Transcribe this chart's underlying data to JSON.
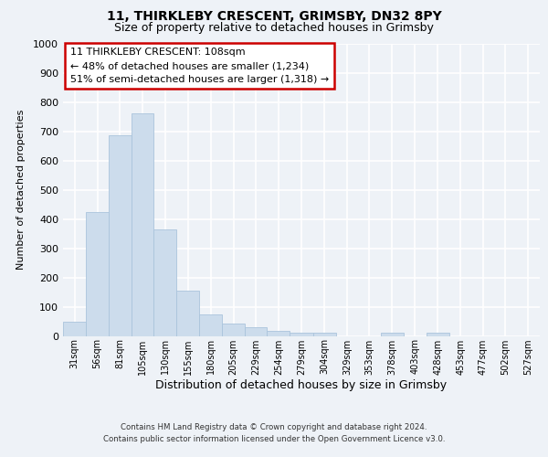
{
  "title_line1": "11, THIRKLEBY CRESCENT, GRIMSBY, DN32 8PY",
  "title_line2": "Size of property relative to detached houses in Grimsby",
  "xlabel": "Distribution of detached houses by size in Grimsby",
  "ylabel": "Number of detached properties",
  "bin_labels": [
    "31sqm",
    "56sqm",
    "81sqm",
    "105sqm",
    "130sqm",
    "155sqm",
    "180sqm",
    "205sqm",
    "229sqm",
    "254sqm",
    "279sqm",
    "304sqm",
    "329sqm",
    "353sqm",
    "378sqm",
    "403sqm",
    "428sqm",
    "453sqm",
    "477sqm",
    "502sqm",
    "527sqm"
  ],
  "bin_edges": [
    18.5,
    43.5,
    68.5,
    93.0,
    117.5,
    142.5,
    167.5,
    192.5,
    217.0,
    241.5,
    266.5,
    291.5,
    316.5,
    341.0,
    365.5,
    390.5,
    415.5,
    440.5,
    465.0,
    489.5,
    514.5,
    539.5
  ],
  "heights": [
    50,
    425,
    685,
    760,
    365,
    155,
    75,
    42,
    30,
    18,
    12,
    10,
    0,
    0,
    10,
    0,
    10,
    0,
    0,
    0,
    0
  ],
  "bar_color": "#ccdcec",
  "bar_edgecolor": "#aac4dc",
  "property_size": 108,
  "ylim": [
    0,
    1000
  ],
  "annotation_text": "11 THIRKLEBY CRESCENT: 108sqm\n← 48% of detached houses are smaller (1,234)\n51% of semi-detached houses are larger (1,318) →",
  "annotation_box_color": "#ffffff",
  "annotation_border_color": "#cc0000",
  "background_color": "#eef2f7",
  "grid_color": "#ffffff",
  "footer_line1": "Contains HM Land Registry data © Crown copyright and database right 2024.",
  "footer_line2": "Contains public sector information licensed under the Open Government Licence v3.0."
}
